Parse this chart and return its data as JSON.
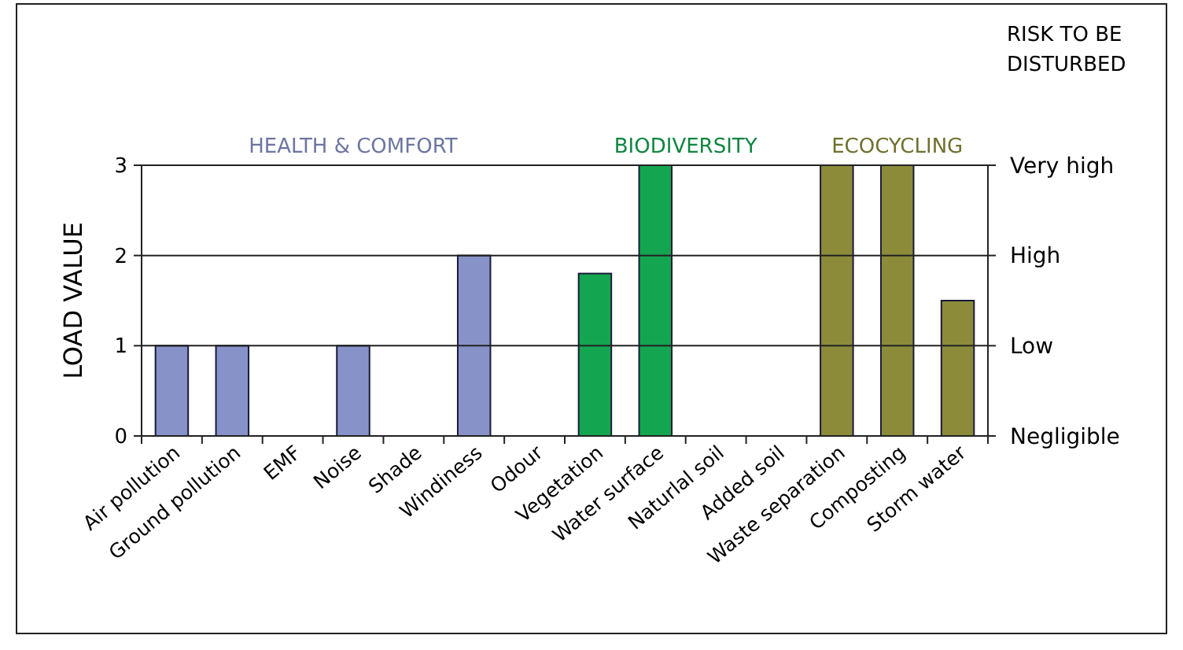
{
  "chart_data": {
    "type": "bar",
    "ylabel": "LOAD VALUE",
    "y2label": "RISK TO BE DISTURBED",
    "categories": [
      "Air pollution",
      "Ground pollution",
      "EMF",
      "Noise",
      "Shade",
      "Windiness",
      "Odour",
      "Vegetation",
      "Water surface",
      "Naturlal soil",
      "Added soil",
      "Waste separation",
      "Composting",
      "Storm water"
    ],
    "series": [
      {
        "name": "HEALTH & COMFORT",
        "color": "#8792c8",
        "values": [
          1,
          1,
          0,
          1,
          0,
          2,
          0,
          null,
          null,
          null,
          null,
          null,
          null,
          null
        ]
      },
      {
        "name": "BIODIVERSITY",
        "color": "#14a550",
        "values": [
          null,
          null,
          null,
          null,
          null,
          null,
          null,
          1.8,
          3,
          0,
          0,
          null,
          null,
          null
        ]
      },
      {
        "name": "ECOCYCLING",
        "color": "#8b8b3a",
        "values": [
          null,
          null,
          null,
          null,
          null,
          null,
          null,
          null,
          null,
          null,
          null,
          3,
          3,
          1.5
        ]
      }
    ],
    "ylim": [
      0,
      3
    ],
    "yticks": [
      0,
      1,
      2,
      3
    ],
    "annotations": [
      "Negligible",
      "Low",
      "High",
      "Very high"
    ],
    "grid": "y"
  }
}
